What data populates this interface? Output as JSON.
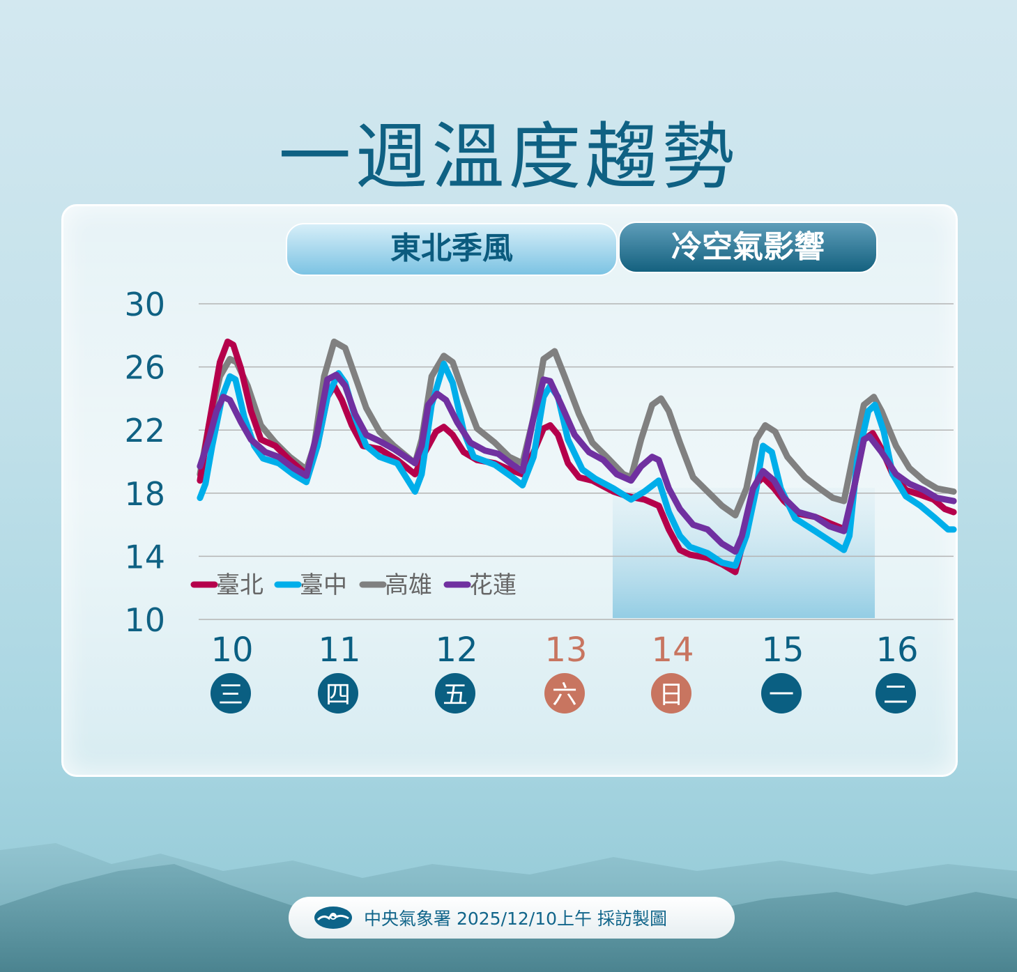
{
  "title": "一週溫度趨勢",
  "bands": {
    "monsoon": "東北季風",
    "cold_air": "冷空氣影響"
  },
  "footer": {
    "logo_icon": "cwa-cloud-logo-icon",
    "text": "中央氣象署 2025/12/10上午 採訪製圖"
  },
  "colors": {
    "title": "#0f6183",
    "weekday": "#0a5f82",
    "weekend": "#c87560",
    "band_light": "#7cc3e3",
    "band_dark": "#14617f"
  },
  "chart_data": {
    "type": "line",
    "title": "",
    "xlabel": "",
    "ylabel": "",
    "ylim": [
      10,
      30
    ],
    "xlim": [
      10.21,
      17.01
    ],
    "yticks": [
      "30",
      "26",
      "22",
      "18",
      "14",
      "10"
    ],
    "grid": true,
    "legend": "bottom-left",
    "shaded_region": {
      "x": [
        13.94,
        16.28
      ],
      "label": "冷空氣影響"
    },
    "days": [
      {
        "date": "10",
        "weekday": "三",
        "weekend": false
      },
      {
        "date": "11",
        "weekday": "四",
        "weekend": false
      },
      {
        "date": "12",
        "weekday": "五",
        "weekend": false
      },
      {
        "date": "13",
        "weekday": "六",
        "weekend": true
      },
      {
        "date": "14",
        "weekday": "日",
        "weekend": true
      },
      {
        "date": "15",
        "weekday": "一",
        "weekend": false
      },
      {
        "date": "16",
        "weekday": "二",
        "weekend": false
      }
    ],
    "series": [
      {
        "name": "臺北",
        "color": "#b5004b",
        "points": [
          [
            10.21,
            18.8
          ],
          [
            10.29,
            22.3
          ],
          [
            10.39,
            26.3
          ],
          [
            10.46,
            27.6
          ],
          [
            10.51,
            27.4
          ],
          [
            10.58,
            25.9
          ],
          [
            10.67,
            23.2
          ],
          [
            10.76,
            21.4
          ],
          [
            10.89,
            21.0
          ],
          [
            11.02,
            20.1
          ],
          [
            11.17,
            19.2
          ],
          [
            11.27,
            21.0
          ],
          [
            11.36,
            24.1
          ],
          [
            11.42,
            24.8
          ],
          [
            11.49,
            23.9
          ],
          [
            11.58,
            22.3
          ],
          [
            11.68,
            21.0
          ],
          [
            11.83,
            20.8
          ],
          [
            11.99,
            20.1
          ],
          [
            12.15,
            19.2
          ],
          [
            12.24,
            20.6
          ],
          [
            12.34,
            21.9
          ],
          [
            12.41,
            22.2
          ],
          [
            12.49,
            21.7
          ],
          [
            12.59,
            20.6
          ],
          [
            12.71,
            20.1
          ],
          [
            12.87,
            19.9
          ],
          [
            13.0,
            19.5
          ],
          [
            13.12,
            19.2
          ],
          [
            13.22,
            20.6
          ],
          [
            13.31,
            22.1
          ],
          [
            13.37,
            22.3
          ],
          [
            13.44,
            21.7
          ],
          [
            13.53,
            19.9
          ],
          [
            13.63,
            19.0
          ],
          [
            13.75,
            18.8
          ],
          [
            13.94,
            18.1
          ],
          [
            14.07,
            17.8
          ],
          [
            14.22,
            17.6
          ],
          [
            14.35,
            17.2
          ],
          [
            14.44,
            15.7
          ],
          [
            14.54,
            14.4
          ],
          [
            14.63,
            14.1
          ],
          [
            14.79,
            13.9
          ],
          [
            14.92,
            13.5
          ],
          [
            15.04,
            13.0
          ],
          [
            15.14,
            15.7
          ],
          [
            15.23,
            18.6
          ],
          [
            15.29,
            19.0
          ],
          [
            15.39,
            18.3
          ],
          [
            15.48,
            17.5
          ],
          [
            15.61,
            16.7
          ],
          [
            15.76,
            16.5
          ],
          [
            15.89,
            16.1
          ],
          [
            16.03,
            15.7
          ],
          [
            16.11,
            18.3
          ],
          [
            16.2,
            21.4
          ],
          [
            16.28,
            21.8
          ],
          [
            16.36,
            20.8
          ],
          [
            16.46,
            19.2
          ],
          [
            16.58,
            18.2
          ],
          [
            16.71,
            17.9
          ],
          [
            16.83,
            17.6
          ],
          [
            16.93,
            17.0
          ],
          [
            17.01,
            16.8
          ]
        ]
      },
      {
        "name": "臺中",
        "color": "#00aeea",
        "points": [
          [
            10.21,
            17.7
          ],
          [
            10.26,
            18.6
          ],
          [
            10.32,
            21.0
          ],
          [
            10.41,
            24.1
          ],
          [
            10.48,
            25.4
          ],
          [
            10.53,
            25.2
          ],
          [
            10.61,
            22.8
          ],
          [
            10.7,
            21.0
          ],
          [
            10.78,
            20.2
          ],
          [
            10.92,
            19.9
          ],
          [
            11.05,
            19.2
          ],
          [
            11.17,
            18.7
          ],
          [
            11.27,
            21.0
          ],
          [
            11.36,
            24.1
          ],
          [
            11.46,
            25.6
          ],
          [
            11.52,
            25.0
          ],
          [
            11.61,
            22.8
          ],
          [
            11.71,
            21.0
          ],
          [
            11.83,
            20.3
          ],
          [
            11.99,
            19.9
          ],
          [
            12.15,
            18.1
          ],
          [
            12.21,
            19.2
          ],
          [
            12.3,
            23.6
          ],
          [
            12.41,
            26.2
          ],
          [
            12.49,
            25.0
          ],
          [
            12.59,
            21.9
          ],
          [
            12.68,
            20.3
          ],
          [
            12.87,
            19.8
          ],
          [
            13.03,
            19.0
          ],
          [
            13.12,
            18.5
          ],
          [
            13.22,
            20.3
          ],
          [
            13.31,
            24.1
          ],
          [
            13.37,
            24.8
          ],
          [
            13.44,
            24.1
          ],
          [
            13.53,
            21.4
          ],
          [
            13.66,
            19.5
          ],
          [
            13.78,
            18.9
          ],
          [
            13.94,
            18.3
          ],
          [
            14.1,
            17.6
          ],
          [
            14.22,
            18.1
          ],
          [
            14.35,
            18.8
          ],
          [
            14.44,
            16.8
          ],
          [
            14.54,
            15.3
          ],
          [
            14.63,
            14.6
          ],
          [
            14.79,
            14.2
          ],
          [
            14.92,
            13.6
          ],
          [
            15.04,
            13.4
          ],
          [
            15.14,
            15.3
          ],
          [
            15.23,
            18.3
          ],
          [
            15.29,
            21.0
          ],
          [
            15.37,
            20.6
          ],
          [
            15.45,
            18.3
          ],
          [
            15.58,
            16.4
          ],
          [
            15.76,
            15.6
          ],
          [
            15.89,
            15.0
          ],
          [
            16.02,
            14.4
          ],
          [
            16.07,
            15.3
          ],
          [
            16.14,
            20.1
          ],
          [
            16.24,
            23.2
          ],
          [
            16.3,
            23.6
          ],
          [
            16.38,
            21.9
          ],
          [
            16.46,
            19.2
          ],
          [
            16.58,
            17.8
          ],
          [
            16.71,
            17.2
          ],
          [
            16.83,
            16.5
          ],
          [
            16.96,
            15.7
          ],
          [
            17.01,
            15.7
          ]
        ]
      },
      {
        "name": "高雄",
        "color": "#808080",
        "points": [
          [
            10.21,
            19.2
          ],
          [
            10.29,
            22.3
          ],
          [
            10.39,
            25.4
          ],
          [
            10.48,
            26.5
          ],
          [
            10.54,
            26.3
          ],
          [
            10.64,
            24.8
          ],
          [
            10.76,
            22.3
          ],
          [
            10.89,
            21.2
          ],
          [
            11.02,
            20.3
          ],
          [
            11.17,
            19.5
          ],
          [
            11.24,
            21.0
          ],
          [
            11.33,
            25.4
          ],
          [
            11.42,
            27.6
          ],
          [
            11.52,
            27.2
          ],
          [
            11.61,
            25.4
          ],
          [
            11.71,
            23.4
          ],
          [
            11.83,
            21.9
          ],
          [
            11.96,
            21.0
          ],
          [
            12.15,
            19.9
          ],
          [
            12.21,
            21.4
          ],
          [
            12.3,
            25.4
          ],
          [
            12.41,
            26.7
          ],
          [
            12.49,
            26.3
          ],
          [
            12.59,
            24.3
          ],
          [
            12.71,
            22.1
          ],
          [
            12.87,
            21.2
          ],
          [
            13.0,
            20.3
          ],
          [
            13.12,
            19.9
          ],
          [
            13.22,
            22.8
          ],
          [
            13.31,
            26.5
          ],
          [
            13.41,
            27.0
          ],
          [
            13.5,
            25.4
          ],
          [
            13.63,
            23.0
          ],
          [
            13.75,
            21.2
          ],
          [
            13.88,
            20.3
          ],
          [
            14.03,
            19.2
          ],
          [
            14.1,
            19.0
          ],
          [
            14.19,
            21.4
          ],
          [
            14.29,
            23.6
          ],
          [
            14.37,
            24.0
          ],
          [
            14.44,
            23.2
          ],
          [
            14.54,
            21.2
          ],
          [
            14.66,
            19.0
          ],
          [
            14.79,
            18.1
          ],
          [
            14.92,
            17.2
          ],
          [
            15.04,
            16.6
          ],
          [
            15.14,
            18.3
          ],
          [
            15.23,
            21.4
          ],
          [
            15.31,
            22.3
          ],
          [
            15.4,
            21.9
          ],
          [
            15.51,
            20.3
          ],
          [
            15.67,
            19.0
          ],
          [
            15.8,
            18.3
          ],
          [
            15.92,
            17.7
          ],
          [
            16.02,
            17.5
          ],
          [
            16.11,
            20.6
          ],
          [
            16.2,
            23.6
          ],
          [
            16.29,
            24.1
          ],
          [
            16.36,
            23.2
          ],
          [
            16.49,
            21.0
          ],
          [
            16.61,
            19.6
          ],
          [
            16.74,
            18.8
          ],
          [
            16.86,
            18.3
          ],
          [
            17.01,
            18.1
          ]
        ]
      },
      {
        "name": "花蓮",
        "color": "#7030a0",
        "points": [
          [
            10.21,
            19.7
          ],
          [
            10.29,
            21.4
          ],
          [
            10.36,
            23.2
          ],
          [
            10.42,
            24.1
          ],
          [
            10.48,
            23.9
          ],
          [
            10.58,
            22.5
          ],
          [
            10.67,
            21.4
          ],
          [
            10.8,
            20.6
          ],
          [
            10.92,
            20.3
          ],
          [
            11.05,
            19.6
          ],
          [
            11.17,
            19.1
          ],
          [
            11.27,
            21.9
          ],
          [
            11.36,
            25.2
          ],
          [
            11.44,
            25.5
          ],
          [
            11.52,
            24.8
          ],
          [
            11.61,
            23.0
          ],
          [
            11.71,
            21.7
          ],
          [
            11.83,
            21.3
          ],
          [
            11.96,
            20.8
          ],
          [
            12.15,
            19.9
          ],
          [
            12.21,
            21.0
          ],
          [
            12.27,
            23.6
          ],
          [
            12.35,
            24.3
          ],
          [
            12.43,
            23.9
          ],
          [
            12.53,
            22.5
          ],
          [
            12.65,
            21.2
          ],
          [
            12.78,
            20.7
          ],
          [
            12.9,
            20.5
          ],
          [
            13.03,
            19.8
          ],
          [
            13.12,
            19.4
          ],
          [
            13.22,
            22.8
          ],
          [
            13.31,
            25.2
          ],
          [
            13.37,
            25.1
          ],
          [
            13.47,
            23.6
          ],
          [
            13.59,
            21.7
          ],
          [
            13.72,
            20.6
          ],
          [
            13.85,
            20.1
          ],
          [
            13.97,
            19.2
          ],
          [
            14.1,
            18.8
          ],
          [
            14.19,
            19.7
          ],
          [
            14.29,
            20.3
          ],
          [
            14.35,
            20.1
          ],
          [
            14.44,
            18.3
          ],
          [
            14.54,
            17.0
          ],
          [
            14.66,
            16.0
          ],
          [
            14.79,
            15.7
          ],
          [
            14.92,
            14.8
          ],
          [
            15.04,
            14.3
          ],
          [
            15.1,
            15.3
          ],
          [
            15.2,
            18.3
          ],
          [
            15.29,
            19.4
          ],
          [
            15.39,
            18.8
          ],
          [
            15.48,
            17.7
          ],
          [
            15.61,
            16.8
          ],
          [
            15.76,
            16.5
          ],
          [
            15.89,
            15.9
          ],
          [
            16.02,
            15.6
          ],
          [
            16.11,
            18.3
          ],
          [
            16.2,
            21.4
          ],
          [
            16.25,
            21.6
          ],
          [
            16.36,
            20.6
          ],
          [
            16.49,
            19.2
          ],
          [
            16.61,
            18.6
          ],
          [
            16.74,
            18.2
          ],
          [
            16.86,
            17.7
          ],
          [
            17.01,
            17.5
          ]
        ]
      }
    ]
  }
}
